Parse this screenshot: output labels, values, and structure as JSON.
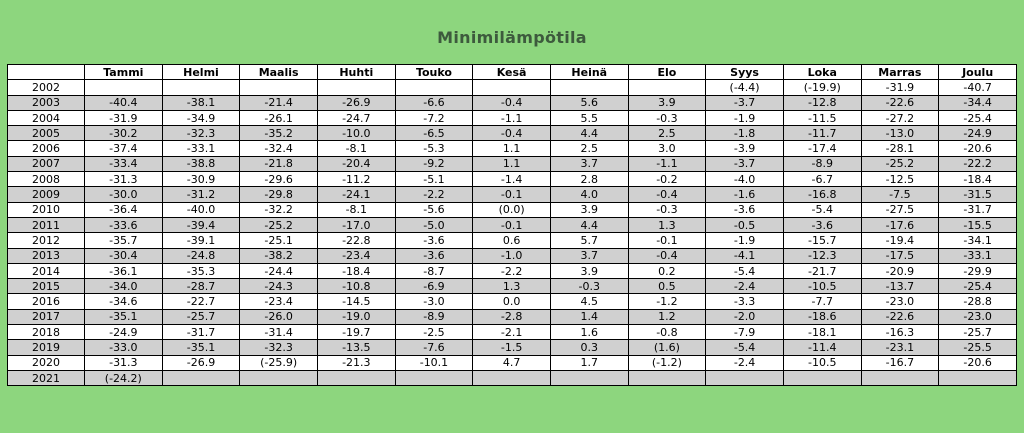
{
  "title": "Minimilämpötila",
  "table": {
    "header": [
      "Tammi",
      "Helmi",
      "Maalis",
      "Huhti",
      "Touko",
      "Kesä",
      "Heinä",
      "Elo",
      "Syys",
      "Loka",
      "Marras",
      "Joulu"
    ],
    "rows": [
      {
        "year": "2002",
        "cells": [
          null,
          null,
          null,
          null,
          null,
          null,
          null,
          null,
          "(-4.4)",
          "(-19.9)",
          "-31.9",
          "-40.7"
        ]
      },
      {
        "year": "2003",
        "cells": [
          "-40.4",
          "-38.1",
          "-21.4",
          "-26.9",
          "-6.6",
          "-0.4",
          "5.6",
          "3.9",
          "-3.7",
          "-12.8",
          "-22.6",
          "-34.4"
        ]
      },
      {
        "year": "2004",
        "cells": [
          "-31.9",
          "-34.9",
          "-26.1",
          "-24.7",
          "-7.2",
          "-1.1",
          "5.5",
          "-0.3",
          "-1.9",
          "-11.5",
          "-27.2",
          "-25.4"
        ]
      },
      {
        "year": "2005",
        "cells": [
          "-30.2",
          "-32.3",
          "-35.2",
          "-10.0",
          "-6.5",
          "-0.4",
          "4.4",
          "2.5",
          "-1.8",
          "-11.7",
          "-13.0",
          "-24.9"
        ]
      },
      {
        "year": "2006",
        "cells": [
          "-37.4",
          "-33.1",
          "-32.4",
          "-8.1",
          "-5.3",
          "1.1",
          "2.5",
          "3.0",
          "-3.9",
          "-17.4",
          "-28.1",
          "-20.6"
        ]
      },
      {
        "year": "2007",
        "cells": [
          "-33.4",
          "-38.8",
          "-21.8",
          "-20.4",
          "-9.2",
          "1.1",
          "3.7",
          "-1.1",
          "-3.7",
          "-8.9",
          "-25.2",
          "-22.2"
        ]
      },
      {
        "year": "2008",
        "cells": [
          "-31.3",
          "-30.9",
          "-29.6",
          "-11.2",
          "-5.1",
          "-1.4",
          "2.8",
          "-0.2",
          "-4.0",
          "-6.7",
          "-12.5",
          "-18.4"
        ]
      },
      {
        "year": "2009",
        "cells": [
          "-30.0",
          "-31.2",
          "-29.8",
          "-24.1",
          "-2.2",
          "-0.1",
          "4.0",
          "-0.4",
          "-1.6",
          "-16.8",
          "-7.5",
          "-31.5"
        ]
      },
      {
        "year": "2010",
        "cells": [
          "-36.4",
          "-40.0",
          "-32.2",
          "-8.1",
          "-5.6",
          "(0.0)",
          "3.9",
          "-0.3",
          "-3.6",
          "-5.4",
          "-27.5",
          "-31.7"
        ]
      },
      {
        "year": "2011",
        "cells": [
          "-33.6",
          "-39.4",
          "-25.2",
          "-17.0",
          "-5.0",
          "-0.1",
          "4.4",
          "1.3",
          "-0.5",
          "-3.6",
          "-17.6",
          "-15.5"
        ]
      },
      {
        "year": "2012",
        "cells": [
          "-35.7",
          "-39.1",
          "-25.1",
          "-22.8",
          "-3.6",
          "0.6",
          "5.7",
          "-0.1",
          "-1.9",
          "-15.7",
          "-19.4",
          "-34.1"
        ]
      },
      {
        "year": "2013",
        "cells": [
          "-30.4",
          "-24.8",
          "-38.2",
          "-23.4",
          "-3.6",
          "-1.0",
          "3.7",
          "-0.4",
          "-4.1",
          "-12.3",
          "-17.5",
          "-33.1"
        ]
      },
      {
        "year": "2014",
        "cells": [
          "-36.1",
          "-35.3",
          "-24.4",
          "-18.4",
          "-8.7",
          "-2.2",
          "3.9",
          "0.2",
          "-5.4",
          "-21.7",
          "-20.9",
          "-29.9"
        ]
      },
      {
        "year": "2015",
        "cells": [
          "-34.0",
          "-28.7",
          "-24.3",
          "-10.8",
          "-6.9",
          "1.3",
          "-0.3",
          "0.5",
          "-2.4",
          "-10.5",
          "-13.7",
          "-25.4"
        ]
      },
      {
        "year": "2016",
        "cells": [
          "-34.6",
          "-22.7",
          "-23.4",
          "-14.5",
          "-3.0",
          "0.0",
          "4.5",
          "-1.2",
          "-3.3",
          "-7.7",
          "-23.0",
          "-28.8"
        ]
      },
      {
        "year": "2017",
        "cells": [
          "-35.1",
          "-25.7",
          "-26.0",
          "-19.0",
          "-8.9",
          "-2.8",
          "1.4",
          "1.2",
          "-2.0",
          "-18.6",
          "-22.6",
          "-23.0"
        ]
      },
      {
        "year": "2018",
        "cells": [
          "-24.9",
          "-31.7",
          "-31.4",
          "-19.7",
          "-2.5",
          "-2.1",
          "1.6",
          "-0.8",
          "-7.9",
          "-18.1",
          "-16.3",
          "-25.7"
        ]
      },
      {
        "year": "2019",
        "cells": [
          "-33.0",
          "-35.1",
          "-32.3",
          "-13.5",
          "-7.6",
          "-1.5",
          "0.3",
          "(1.6)",
          "-5.4",
          "-11.4",
          "-23.1",
          "-25.5"
        ]
      },
      {
        "year": "2020",
        "cells": [
          "-31.3",
          "-26.9",
          "(-25.9)",
          "-21.3",
          "-10.1",
          "4.7",
          "1.7",
          "(-1.2)",
          "-2.4",
          "-10.5",
          "-16.7",
          "-20.6"
        ]
      },
      {
        "year": "2021",
        "cells": [
          "(-24.2)",
          null,
          null,
          null,
          null,
          null,
          null,
          null,
          null,
          null,
          null,
          null
        ]
      }
    ]
  }
}
